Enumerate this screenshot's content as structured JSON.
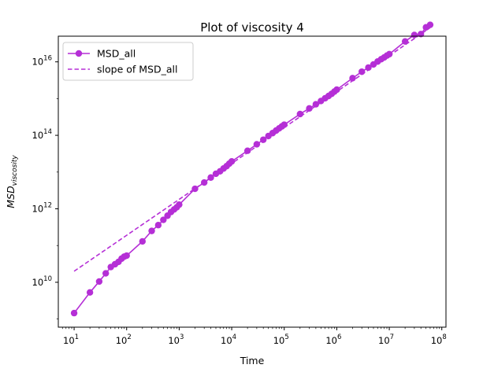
{
  "chart_data": {
    "type": "line",
    "title": "Plot of viscosity 4",
    "xlabel": "Time",
    "ylabel_main": "MSD",
    "ylabel_sub": "viscosity",
    "xscale": "log",
    "yscale": "log",
    "xlim": [
      5,
      120000000
    ],
    "ylim": [
      600000000,
      50000000000000000
    ],
    "x_ticks": [
      {
        "value": 10,
        "base": "10",
        "exp": "1"
      },
      {
        "value": 100,
        "base": "10",
        "exp": "2"
      },
      {
        "value": 1000,
        "base": "10",
        "exp": "3"
      },
      {
        "value": 10000,
        "base": "10",
        "exp": "4"
      },
      {
        "value": 100000,
        "base": "10",
        "exp": "5"
      },
      {
        "value": 1000000,
        "base": "10",
        "exp": "6"
      },
      {
        "value": 10000000,
        "base": "10",
        "exp": "7"
      },
      {
        "value": 100000000,
        "base": "10",
        "exp": "8"
      }
    ],
    "y_ticks": [
      {
        "value": 10000000000,
        "base": "10",
        "exp": "10"
      },
      {
        "value": 1000000000000,
        "base": "10",
        "exp": "12"
      },
      {
        "value": 100000000000000,
        "base": "10",
        "exp": "14"
      },
      {
        "value": 10000000000000000,
        "base": "10",
        "exp": "16"
      }
    ],
    "grid": false,
    "legend_position": "top-left",
    "series": [
      {
        "name": "MSD_all",
        "style": "solid-markers",
        "color": "#b52fd6",
        "x": [
          10,
          20,
          30,
          40,
          50,
          60,
          70,
          80,
          90,
          100,
          200,
          300,
          400,
          500,
          600,
          700,
          800,
          900,
          1000,
          2000,
          3000,
          4000,
          5000,
          6000,
          7000,
          8000,
          9000,
          10000,
          20000,
          30000,
          40000,
          50000,
          60000,
          70000,
          80000,
          90000,
          100000,
          200000,
          300000,
          400000,
          500000,
          600000,
          700000,
          800000,
          900000,
          1000000,
          2000000,
          3000000,
          4000000,
          5000000,
          6000000,
          7000000,
          8000000,
          9000000,
          10000000,
          20000000,
          30000000,
          40000000,
          50000000,
          60000000
        ],
        "y": [
          1450000000.0,
          5300000000.0,
          10500000000.0,
          17500000000.0,
          26000000000.0,
          31000000000.0,
          36000000000.0,
          44000000000.0,
          50000000000.0,
          53000000000.0,
          130000000000.0,
          250000000000.0,
          360000000000.0,
          500000000000.0,
          650000000000.0,
          820000000000.0,
          960000000000.0,
          1100000000000.0,
          1300000000000.0,
          3500000000000.0,
          5200000000000.0,
          7100000000000.0,
          9000000000000.0,
          10500000000000.0,
          12500000000000.0,
          14500000000000.0,
          17000000000000.0,
          19500000000000.0,
          38000000000000.0,
          57000000000000.0,
          76000000000000.0,
          96000000000000.0,
          115000000000000.0,
          135000000000000.0,
          155000000000000.0,
          175000000000000.0,
          195000000000000.0,
          380000000000000.0,
          540000000000000.0,
          700000000000000.0,
          860000000000000.0,
          1020000000000000.0,
          1180000000000000.0,
          1350000000000000.0,
          1550000000000000.0,
          1750000000000000.0,
          3600000000000000.0,
          5400000000000000.0,
          7000000000000000.0,
          8500000000000000.0,
          1.02e+16,
          1.18e+16,
          1.32e+16,
          1.48e+16,
          1.62e+16,
          3.6e+16,
          5.4e+16,
          5.7e+16,
          8.7e+16,
          1.02e+17
        ]
      },
      {
        "name": "slope of MSD_all",
        "style": "dashed",
        "color": "#b52fd6",
        "x": [
          10,
          60000000
        ],
        "y": [
          20000000000.0,
          8.5e+16
        ]
      }
    ]
  }
}
